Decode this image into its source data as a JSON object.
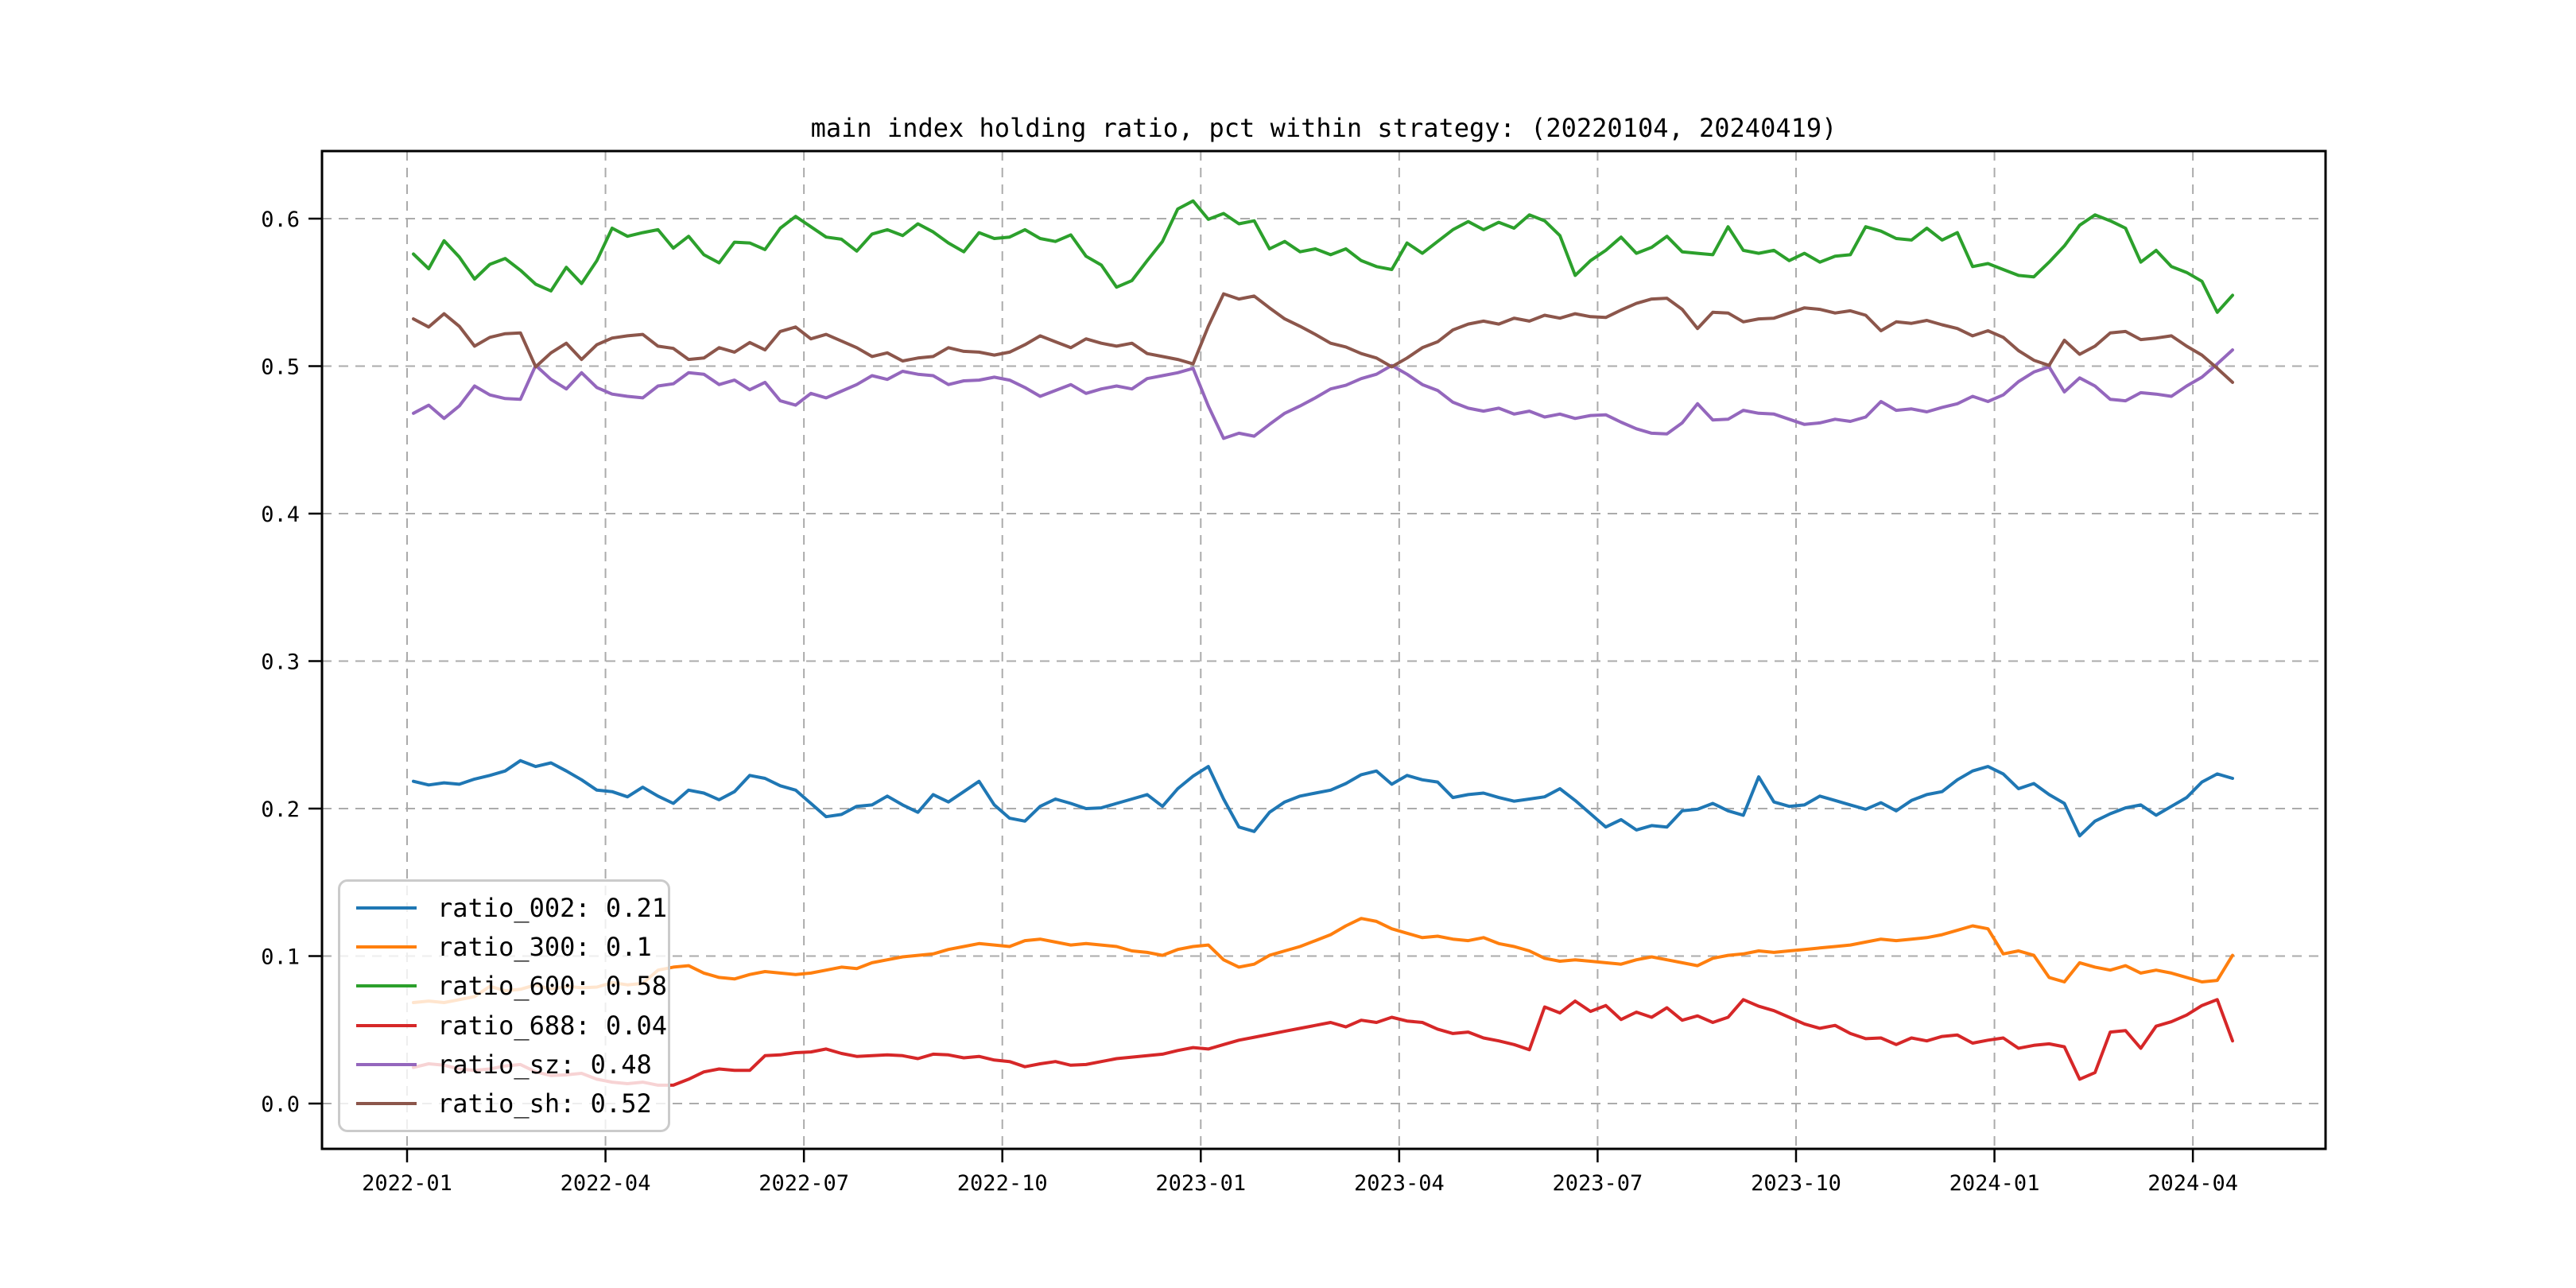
{
  "page": {
    "background": "#ffffff"
  },
  "chart_data": {
    "type": "line",
    "title": "main index holding ratio, pct within strategy: (20220104, 20240419)",
    "grid": true,
    "grid_style": "dashed",
    "grid_color": "#ababab",
    "legend_position": "lower-left",
    "x_axis": {
      "tick_labels": [
        "2022-01",
        "2022-04",
        "2022-07",
        "2022-10",
        "2023-01",
        "2023-04",
        "2023-07",
        "2023-10",
        "2024-01",
        "2024-04"
      ],
      "tick_interval_months": 3
    },
    "y_axis": {
      "tick_labels": [
        "0.0",
        "0.1",
        "0.2",
        "0.3",
        "0.4",
        "0.5",
        "0.6"
      ],
      "ticks": [
        0.0,
        0.1,
        0.2,
        0.3,
        0.4,
        0.5,
        0.6
      ],
      "ylim": [
        -0.0307,
        0.6458
      ]
    },
    "x": {
      "start_date": "2022-01-04",
      "end_date": "2024-04-19",
      "sampling": "weekly",
      "points": 120
    },
    "series": [
      {
        "name": "ratio_002",
        "legend_label": "ratio_002: 0.21",
        "color": "#1f77b4",
        "values": [
          0.2185,
          0.216,
          0.2175,
          0.2165,
          0.22,
          0.2225,
          0.2255,
          0.2325,
          0.2285,
          0.231,
          0.2255,
          0.2195,
          0.2125,
          0.2115,
          0.208,
          0.2145,
          0.2085,
          0.2035,
          0.2125,
          0.2105,
          0.206,
          0.2115,
          0.2225,
          0.2205,
          0.2155,
          0.2125,
          0.2035,
          0.1945,
          0.196,
          0.2015,
          0.2025,
          0.2085,
          0.2025,
          0.1975,
          0.2095,
          0.2045,
          0.2115,
          0.2185,
          0.2025,
          0.1935,
          0.1915,
          0.2015,
          0.2065,
          0.2035,
          0.2,
          0.2005,
          0.2035,
          0.2065,
          0.2095,
          0.2015,
          0.2135,
          0.222,
          0.2285,
          0.2065,
          0.1875,
          0.1845,
          0.1975,
          0.2045,
          0.2085,
          0.2105,
          0.2125,
          0.217,
          0.223,
          0.2255,
          0.2165,
          0.2225,
          0.2195,
          0.218,
          0.2075,
          0.2095,
          0.2105,
          0.2075,
          0.205,
          0.2065,
          0.208,
          0.2135,
          0.2055,
          0.1965,
          0.1875,
          0.1925,
          0.1855,
          0.1885,
          0.1875,
          0.1985,
          0.1995,
          0.2035,
          0.1985,
          0.1955,
          0.2215,
          0.2045,
          0.2015,
          0.2025,
          0.2085,
          0.2055,
          0.2025,
          0.1995,
          0.204,
          0.1985,
          0.2055,
          0.2095,
          0.2115,
          0.2195,
          0.2255,
          0.2285,
          0.2235,
          0.2135,
          0.217,
          0.2095,
          0.2035,
          0.1815,
          0.1915,
          0.1965,
          0.2005,
          0.2025,
          0.1955,
          0.2015,
          0.2075,
          0.218,
          0.2235,
          0.2205
        ]
      },
      {
        "name": "ratio_300",
        "legend_label": "ratio_300: 0.1",
        "color": "#ff7f0e",
        "values": [
          0.0685,
          0.0695,
          0.0685,
          0.0705,
          0.0725,
          0.0795,
          0.0765,
          0.0775,
          0.0805,
          0.0775,
          0.0795,
          0.0785,
          0.079,
          0.082,
          0.0805,
          0.0815,
          0.0905,
          0.0925,
          0.0935,
          0.0885,
          0.0855,
          0.0845,
          0.0875,
          0.0895,
          0.0885,
          0.0875,
          0.0885,
          0.0905,
          0.0925,
          0.0915,
          0.0955,
          0.0975,
          0.0995,
          0.1005,
          0.1015,
          0.1045,
          0.1065,
          0.1085,
          0.1075,
          0.1065,
          0.1105,
          0.1115,
          0.1095,
          0.1075,
          0.1085,
          0.1075,
          0.1065,
          0.1035,
          0.1025,
          0.1005,
          0.1045,
          0.1065,
          0.1075,
          0.0975,
          0.0925,
          0.0945,
          0.1005,
          0.1035,
          0.1065,
          0.1105,
          0.1145,
          0.1205,
          0.1255,
          0.1235,
          0.1185,
          0.1155,
          0.1125,
          0.1135,
          0.1115,
          0.1105,
          0.1125,
          0.1085,
          0.1065,
          0.1035,
          0.0985,
          0.0965,
          0.0975,
          0.0965,
          0.0955,
          0.0945,
          0.0975,
          0.0995,
          0.0975,
          0.0955,
          0.0935,
          0.0985,
          0.1005,
          0.1015,
          0.1035,
          0.1025,
          0.1035,
          0.1045,
          0.1055,
          0.1065,
          0.1075,
          0.1095,
          0.1115,
          0.1105,
          0.1115,
          0.1125,
          0.1145,
          0.1175,
          0.1205,
          0.1185,
          0.1015,
          0.1035,
          0.1005,
          0.0855,
          0.0825,
          0.0955,
          0.0925,
          0.0905,
          0.0935,
          0.0885,
          0.0905,
          0.0885,
          0.0855,
          0.0825,
          0.0835,
          0.1005
        ]
      },
      {
        "name": "ratio_600",
        "legend_label": "ratio_600: 0.58",
        "color": "#2ca02c",
        "values": [
          0.576,
          0.566,
          0.585,
          0.574,
          0.559,
          0.569,
          0.573,
          0.565,
          0.5555,
          0.551,
          0.567,
          0.556,
          0.5715,
          0.5935,
          0.588,
          0.5905,
          0.5925,
          0.58,
          0.588,
          0.5755,
          0.57,
          0.584,
          0.5835,
          0.579,
          0.5935,
          0.6015,
          0.5945,
          0.5875,
          0.586,
          0.578,
          0.5895,
          0.5925,
          0.5885,
          0.5965,
          0.591,
          0.5835,
          0.5775,
          0.5905,
          0.5865,
          0.5875,
          0.5925,
          0.5865,
          0.5845,
          0.589,
          0.5745,
          0.5685,
          0.5535,
          0.558,
          0.5715,
          0.5845,
          0.6065,
          0.612,
          0.5995,
          0.6035,
          0.5965,
          0.5985,
          0.5795,
          0.5845,
          0.5775,
          0.5795,
          0.5755,
          0.5795,
          0.5715,
          0.5675,
          0.5655,
          0.5835,
          0.5765,
          0.5845,
          0.5925,
          0.598,
          0.5925,
          0.5975,
          0.5935,
          0.6025,
          0.5985,
          0.5885,
          0.5615,
          0.5715,
          0.5785,
          0.5875,
          0.5765,
          0.5805,
          0.588,
          0.5775,
          0.5765,
          0.5755,
          0.5945,
          0.5785,
          0.5765,
          0.5785,
          0.5715,
          0.5765,
          0.5705,
          0.5745,
          0.5755,
          0.5945,
          0.5915,
          0.5865,
          0.5855,
          0.5935,
          0.5855,
          0.5905,
          0.5675,
          0.5695,
          0.5655,
          0.5615,
          0.5605,
          0.5705,
          0.5815,
          0.5955,
          0.6025,
          0.5985,
          0.5935,
          0.5705,
          0.5785,
          0.5675,
          0.5635,
          0.5575,
          0.5365,
          0.548
        ]
      },
      {
        "name": "ratio_688",
        "legend_label": "ratio_688: 0.04",
        "color": "#d62728",
        "values": [
          0.0245,
          0.027,
          0.026,
          0.0235,
          0.0225,
          0.0235,
          0.0255,
          0.0265,
          0.0215,
          0.019,
          0.0195,
          0.0205,
          0.0165,
          0.0145,
          0.0135,
          0.0145,
          0.0125,
          0.0125,
          0.0165,
          0.0215,
          0.0235,
          0.0225,
          0.0225,
          0.0325,
          0.033,
          0.0345,
          0.035,
          0.037,
          0.034,
          0.032,
          0.0325,
          0.033,
          0.0325,
          0.0305,
          0.0335,
          0.033,
          0.031,
          0.032,
          0.0295,
          0.0285,
          0.025,
          0.027,
          0.0285,
          0.026,
          0.0265,
          0.0285,
          0.0305,
          0.0315,
          0.0325,
          0.0335,
          0.036,
          0.038,
          0.037,
          0.04,
          0.043,
          0.045,
          0.047,
          0.049,
          0.051,
          0.053,
          0.055,
          0.052,
          0.0565,
          0.055,
          0.0585,
          0.056,
          0.055,
          0.0505,
          0.0475,
          0.0485,
          0.0445,
          0.0425,
          0.04,
          0.0365,
          0.0655,
          0.0615,
          0.0695,
          0.0625,
          0.0665,
          0.057,
          0.062,
          0.0585,
          0.065,
          0.0565,
          0.0595,
          0.055,
          0.0585,
          0.0705,
          0.066,
          0.063,
          0.0585,
          0.054,
          0.051,
          0.053,
          0.0475,
          0.044,
          0.0445,
          0.04,
          0.0445,
          0.0425,
          0.0455,
          0.0465,
          0.041,
          0.043,
          0.0445,
          0.0375,
          0.0395,
          0.0405,
          0.0385,
          0.0165,
          0.021,
          0.0485,
          0.0495,
          0.0375,
          0.0525,
          0.0555,
          0.06,
          0.0665,
          0.0705,
          0.0425
        ]
      },
      {
        "name": "ratio_sz",
        "legend_label": "ratio_sz: 0.48",
        "color": "#9467bd",
        "values": [
          0.468,
          0.4735,
          0.4645,
          0.473,
          0.4865,
          0.4805,
          0.478,
          0.4775,
          0.5005,
          0.491,
          0.4845,
          0.4955,
          0.4855,
          0.481,
          0.4795,
          0.4785,
          0.4865,
          0.488,
          0.4955,
          0.4945,
          0.4875,
          0.4905,
          0.484,
          0.489,
          0.4765,
          0.4735,
          0.4815,
          0.4785,
          0.483,
          0.4875,
          0.4935,
          0.491,
          0.4965,
          0.4945,
          0.4935,
          0.4875,
          0.49,
          0.4905,
          0.4925,
          0.4905,
          0.4855,
          0.4795,
          0.4835,
          0.4875,
          0.4815,
          0.4845,
          0.4865,
          0.4845,
          0.4915,
          0.4935,
          0.4955,
          0.4985,
          0.473,
          0.451,
          0.4545,
          0.4525,
          0.4605,
          0.468,
          0.473,
          0.4785,
          0.4845,
          0.487,
          0.4915,
          0.4945,
          0.5005,
          0.4945,
          0.4875,
          0.4835,
          0.4755,
          0.4715,
          0.4695,
          0.4715,
          0.4675,
          0.4695,
          0.4655,
          0.4675,
          0.4645,
          0.4665,
          0.467,
          0.462,
          0.4575,
          0.4545,
          0.454,
          0.4615,
          0.4745,
          0.4635,
          0.464,
          0.47,
          0.468,
          0.4675,
          0.464,
          0.4605,
          0.4615,
          0.464,
          0.4625,
          0.4655,
          0.476,
          0.47,
          0.471,
          0.469,
          0.472,
          0.4745,
          0.4795,
          0.476,
          0.4805,
          0.4895,
          0.496,
          0.4995,
          0.4825,
          0.492,
          0.4865,
          0.4775,
          0.4765,
          0.482,
          0.481,
          0.4795,
          0.4865,
          0.4925,
          0.5015,
          0.511
        ]
      },
      {
        "name": "ratio_sh",
        "legend_label": "ratio_sh: 0.52",
        "color": "#8c564b",
        "values": [
          0.532,
          0.5265,
          0.5355,
          0.527,
          0.5135,
          0.5195,
          0.522,
          0.5225,
          0.4995,
          0.509,
          0.5155,
          0.5045,
          0.5145,
          0.519,
          0.5205,
          0.5215,
          0.5135,
          0.512,
          0.5045,
          0.5055,
          0.5125,
          0.5095,
          0.516,
          0.511,
          0.5235,
          0.5265,
          0.5185,
          0.5215,
          0.517,
          0.5125,
          0.5065,
          0.509,
          0.5035,
          0.5055,
          0.5065,
          0.5125,
          0.51,
          0.5095,
          0.5075,
          0.5095,
          0.5145,
          0.5205,
          0.5165,
          0.5125,
          0.5185,
          0.5155,
          0.5135,
          0.5155,
          0.5085,
          0.5065,
          0.5045,
          0.5015,
          0.527,
          0.549,
          0.5455,
          0.5475,
          0.5395,
          0.532,
          0.527,
          0.5215,
          0.5155,
          0.513,
          0.5085,
          0.5055,
          0.4995,
          0.5055,
          0.5125,
          0.5165,
          0.5245,
          0.5285,
          0.5305,
          0.5285,
          0.5325,
          0.5305,
          0.5345,
          0.5325,
          0.5355,
          0.5335,
          0.533,
          0.538,
          0.5425,
          0.5455,
          0.546,
          0.5385,
          0.5255,
          0.5365,
          0.536,
          0.53,
          0.532,
          0.5325,
          0.536,
          0.5395,
          0.5385,
          0.536,
          0.5375,
          0.5345,
          0.524,
          0.53,
          0.529,
          0.531,
          0.528,
          0.5255,
          0.5205,
          0.524,
          0.5195,
          0.5105,
          0.504,
          0.5005,
          0.5175,
          0.508,
          0.5135,
          0.5225,
          0.5235,
          0.518,
          0.519,
          0.5205,
          0.5135,
          0.5075,
          0.4985,
          0.489
        ]
      }
    ]
  }
}
